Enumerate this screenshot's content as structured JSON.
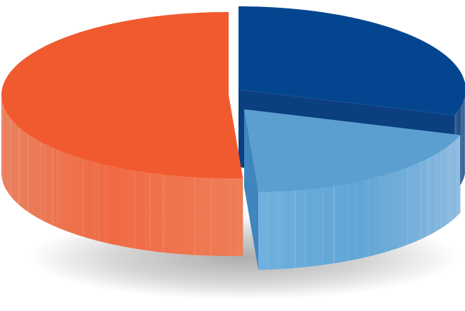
{
  "chart_data": {
    "type": "pie",
    "title": "",
    "categories": [
      "",
      "",
      ""
    ],
    "values": [
      51,
      30,
      19
    ],
    "colors": [
      "#f15a2f",
      "#03468f",
      "#5a9fcf"
    ],
    "exploded": [
      true,
      true,
      true
    ],
    "style": "3d",
    "legend": "none",
    "data_labels": "none"
  }
}
